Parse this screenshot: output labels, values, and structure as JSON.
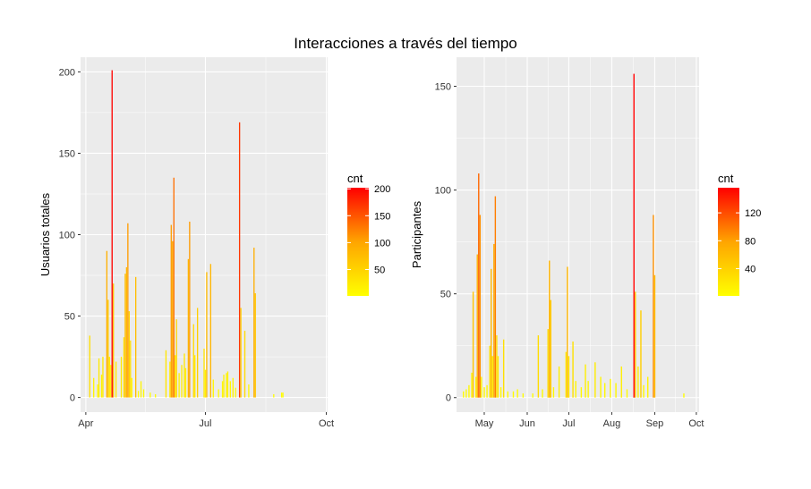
{
  "figure": {
    "title": "Interacciones a través del tiempo"
  },
  "colors": {
    "panel_bg": "#EBEBEB",
    "grid": "#FFFFFF",
    "low": "#FFFF00",
    "mid": "#FFA500",
    "high": "#FF0000"
  },
  "chart_data": [
    {
      "type": "bar",
      "xlabel": "",
      "ylabel": "Usuarios totales",
      "xlim": [
        "2021-03-28",
        "2021-10-02"
      ],
      "ylim": [
        -9,
        209
      ],
      "x_ticks": [
        {
          "date": "2021-04-01",
          "label": "Apr"
        },
        {
          "date": "2021-07-01",
          "label": "Jul"
        },
        {
          "date": "2021-10-01",
          "label": "Oct"
        }
      ],
      "y_ticks": [
        0,
        50,
        100,
        150,
        200
      ],
      "grid": true,
      "legend": {
        "title": "cnt",
        "position": "right",
        "ticks": [
          50,
          100,
          150,
          200
        ],
        "range": [
          1,
          202
        ]
      },
      "data": [
        {
          "x": "2021-04-04",
          "y": 38
        },
        {
          "x": "2021-04-07",
          "y": 12
        },
        {
          "x": "2021-04-10",
          "y": 8
        },
        {
          "x": "2021-04-11",
          "y": 24
        },
        {
          "x": "2021-04-13",
          "y": 14
        },
        {
          "x": "2021-04-14",
          "y": 25
        },
        {
          "x": "2021-04-17",
          "y": 90
        },
        {
          "x": "2021-04-18",
          "y": 60
        },
        {
          "x": "2021-04-19",
          "y": 25
        },
        {
          "x": "2021-04-20",
          "y": 20
        },
        {
          "x": "2021-04-21",
          "y": 201
        },
        {
          "x": "2021-04-22",
          "y": 70
        },
        {
          "x": "2021-04-24",
          "y": 22
        },
        {
          "x": "2021-04-28",
          "y": 25
        },
        {
          "x": "2021-04-30",
          "y": 37
        },
        {
          "x": "2021-05-01",
          "y": 76
        },
        {
          "x": "2021-05-02",
          "y": 80
        },
        {
          "x": "2021-05-03",
          "y": 107
        },
        {
          "x": "2021-05-04",
          "y": 53
        },
        {
          "x": "2021-05-05",
          "y": 35
        },
        {
          "x": "2021-05-06",
          "y": 12
        },
        {
          "x": "2021-05-09",
          "y": 74
        },
        {
          "x": "2021-05-11",
          "y": 4
        },
        {
          "x": "2021-05-13",
          "y": 10
        },
        {
          "x": "2021-05-15",
          "y": 5
        },
        {
          "x": "2021-05-20",
          "y": 3
        },
        {
          "x": "2021-05-24",
          "y": 2
        },
        {
          "x": "2021-06-01",
          "y": 29
        },
        {
          "x": "2021-06-04",
          "y": 22
        },
        {
          "x": "2021-06-05",
          "y": 106
        },
        {
          "x": "2021-06-06",
          "y": 96
        },
        {
          "x": "2021-06-07",
          "y": 135
        },
        {
          "x": "2021-06-08",
          "y": 26
        },
        {
          "x": "2021-06-09",
          "y": 48
        },
        {
          "x": "2021-06-11",
          "y": 15
        },
        {
          "x": "2021-06-13",
          "y": 20
        },
        {
          "x": "2021-06-15",
          "y": 27
        },
        {
          "x": "2021-06-16",
          "y": 18
        },
        {
          "x": "2021-06-18",
          "y": 85
        },
        {
          "x": "2021-06-19",
          "y": 108
        },
        {
          "x": "2021-06-22",
          "y": 45
        },
        {
          "x": "2021-06-23",
          "y": 26
        },
        {
          "x": "2021-06-25",
          "y": 55
        },
        {
          "x": "2021-06-30",
          "y": 30
        },
        {
          "x": "2021-07-01",
          "y": 17
        },
        {
          "x": "2021-07-02",
          "y": 77
        },
        {
          "x": "2021-07-05",
          "y": 82
        },
        {
          "x": "2021-07-07",
          "y": 11
        },
        {
          "x": "2021-07-11",
          "y": 5
        },
        {
          "x": "2021-07-14",
          "y": 10
        },
        {
          "x": "2021-07-15",
          "y": 14
        },
        {
          "x": "2021-07-17",
          "y": 15
        },
        {
          "x": "2021-07-18",
          "y": 16
        },
        {
          "x": "2021-07-20",
          "y": 10
        },
        {
          "x": "2021-07-22",
          "y": 12
        },
        {
          "x": "2021-07-24",
          "y": 6
        },
        {
          "x": "2021-07-27",
          "y": 169
        },
        {
          "x": "2021-07-28",
          "y": 55
        },
        {
          "x": "2021-07-31",
          "y": 41
        },
        {
          "x": "2021-08-03",
          "y": 8
        },
        {
          "x": "2021-08-07",
          "y": 92
        },
        {
          "x": "2021-08-08",
          "y": 64
        },
        {
          "x": "2021-08-22",
          "y": 2
        },
        {
          "x": "2021-08-28",
          "y": 3
        },
        {
          "x": "2021-08-29",
          "y": 3
        }
      ]
    },
    {
      "type": "bar",
      "xlabel": "",
      "ylabel": "Participantes",
      "xlim": [
        "2021-04-11",
        "2021-10-03"
      ],
      "ylim": [
        -7,
        164
      ],
      "x_ticks": [
        {
          "date": "2021-05-01",
          "label": "May"
        },
        {
          "date": "2021-06-01",
          "label": "Jun"
        },
        {
          "date": "2021-07-01",
          "label": "Jul"
        },
        {
          "date": "2021-08-01",
          "label": "Aug"
        },
        {
          "date": "2021-09-01",
          "label": "Sep"
        },
        {
          "date": "2021-10-01",
          "label": "Oct"
        }
      ],
      "y_ticks": [
        0,
        50,
        100,
        150
      ],
      "grid": true,
      "legend": {
        "title": "cnt",
        "position": "right",
        "ticks": [
          40,
          80,
          120
        ],
        "range": [
          1,
          156
        ]
      },
      "data": [
        {
          "x": "2021-04-16",
          "y": 3
        },
        {
          "x": "2021-04-18",
          "y": 4
        },
        {
          "x": "2021-04-20",
          "y": 6
        },
        {
          "x": "2021-04-22",
          "y": 12
        },
        {
          "x": "2021-04-23",
          "y": 51
        },
        {
          "x": "2021-04-25",
          "y": 10
        },
        {
          "x": "2021-04-26",
          "y": 69
        },
        {
          "x": "2021-04-27",
          "y": 108
        },
        {
          "x": "2021-04-28",
          "y": 88
        },
        {
          "x": "2021-04-29",
          "y": 10
        },
        {
          "x": "2021-05-01",
          "y": 5
        },
        {
          "x": "2021-05-03",
          "y": 6
        },
        {
          "x": "2021-05-05",
          "y": 25
        },
        {
          "x": "2021-05-06",
          "y": 62
        },
        {
          "x": "2021-05-07",
          "y": 20
        },
        {
          "x": "2021-05-08",
          "y": 74
        },
        {
          "x": "2021-05-09",
          "y": 97
        },
        {
          "x": "2021-05-10",
          "y": 30
        },
        {
          "x": "2021-05-11",
          "y": 20
        },
        {
          "x": "2021-05-13",
          "y": 5
        },
        {
          "x": "2021-05-15",
          "y": 28
        },
        {
          "x": "2021-05-18",
          "y": 3
        },
        {
          "x": "2021-05-22",
          "y": 3
        },
        {
          "x": "2021-05-25",
          "y": 4
        },
        {
          "x": "2021-05-29",
          "y": 2
        },
        {
          "x": "2021-06-05",
          "y": 2
        },
        {
          "x": "2021-06-09",
          "y": 30
        },
        {
          "x": "2021-06-12",
          "y": 4
        },
        {
          "x": "2021-06-16",
          "y": 33
        },
        {
          "x": "2021-06-17",
          "y": 66
        },
        {
          "x": "2021-06-18",
          "y": 47
        },
        {
          "x": "2021-06-20",
          "y": 5
        },
        {
          "x": "2021-06-24",
          "y": 15
        },
        {
          "x": "2021-06-29",
          "y": 22
        },
        {
          "x": "2021-06-30",
          "y": 63
        },
        {
          "x": "2021-07-01",
          "y": 20
        },
        {
          "x": "2021-07-04",
          "y": 27
        },
        {
          "x": "2021-07-06",
          "y": 8
        },
        {
          "x": "2021-07-10",
          "y": 5
        },
        {
          "x": "2021-07-13",
          "y": 16
        },
        {
          "x": "2021-07-15",
          "y": 8
        },
        {
          "x": "2021-07-20",
          "y": 17
        },
        {
          "x": "2021-07-24",
          "y": 10
        },
        {
          "x": "2021-07-27",
          "y": 7
        },
        {
          "x": "2021-07-31",
          "y": 9
        },
        {
          "x": "2021-08-04",
          "y": 7
        },
        {
          "x": "2021-08-08",
          "y": 15
        },
        {
          "x": "2021-08-12",
          "y": 4
        },
        {
          "x": "2021-08-17",
          "y": 156
        },
        {
          "x": "2021-08-18",
          "y": 51
        },
        {
          "x": "2021-08-20",
          "y": 15
        },
        {
          "x": "2021-08-22",
          "y": 42
        },
        {
          "x": "2021-08-24",
          "y": 6
        },
        {
          "x": "2021-08-27",
          "y": 10
        },
        {
          "x": "2021-08-31",
          "y": 88
        },
        {
          "x": "2021-09-01",
          "y": 59
        },
        {
          "x": "2021-09-22",
          "y": 2
        }
      ]
    }
  ]
}
